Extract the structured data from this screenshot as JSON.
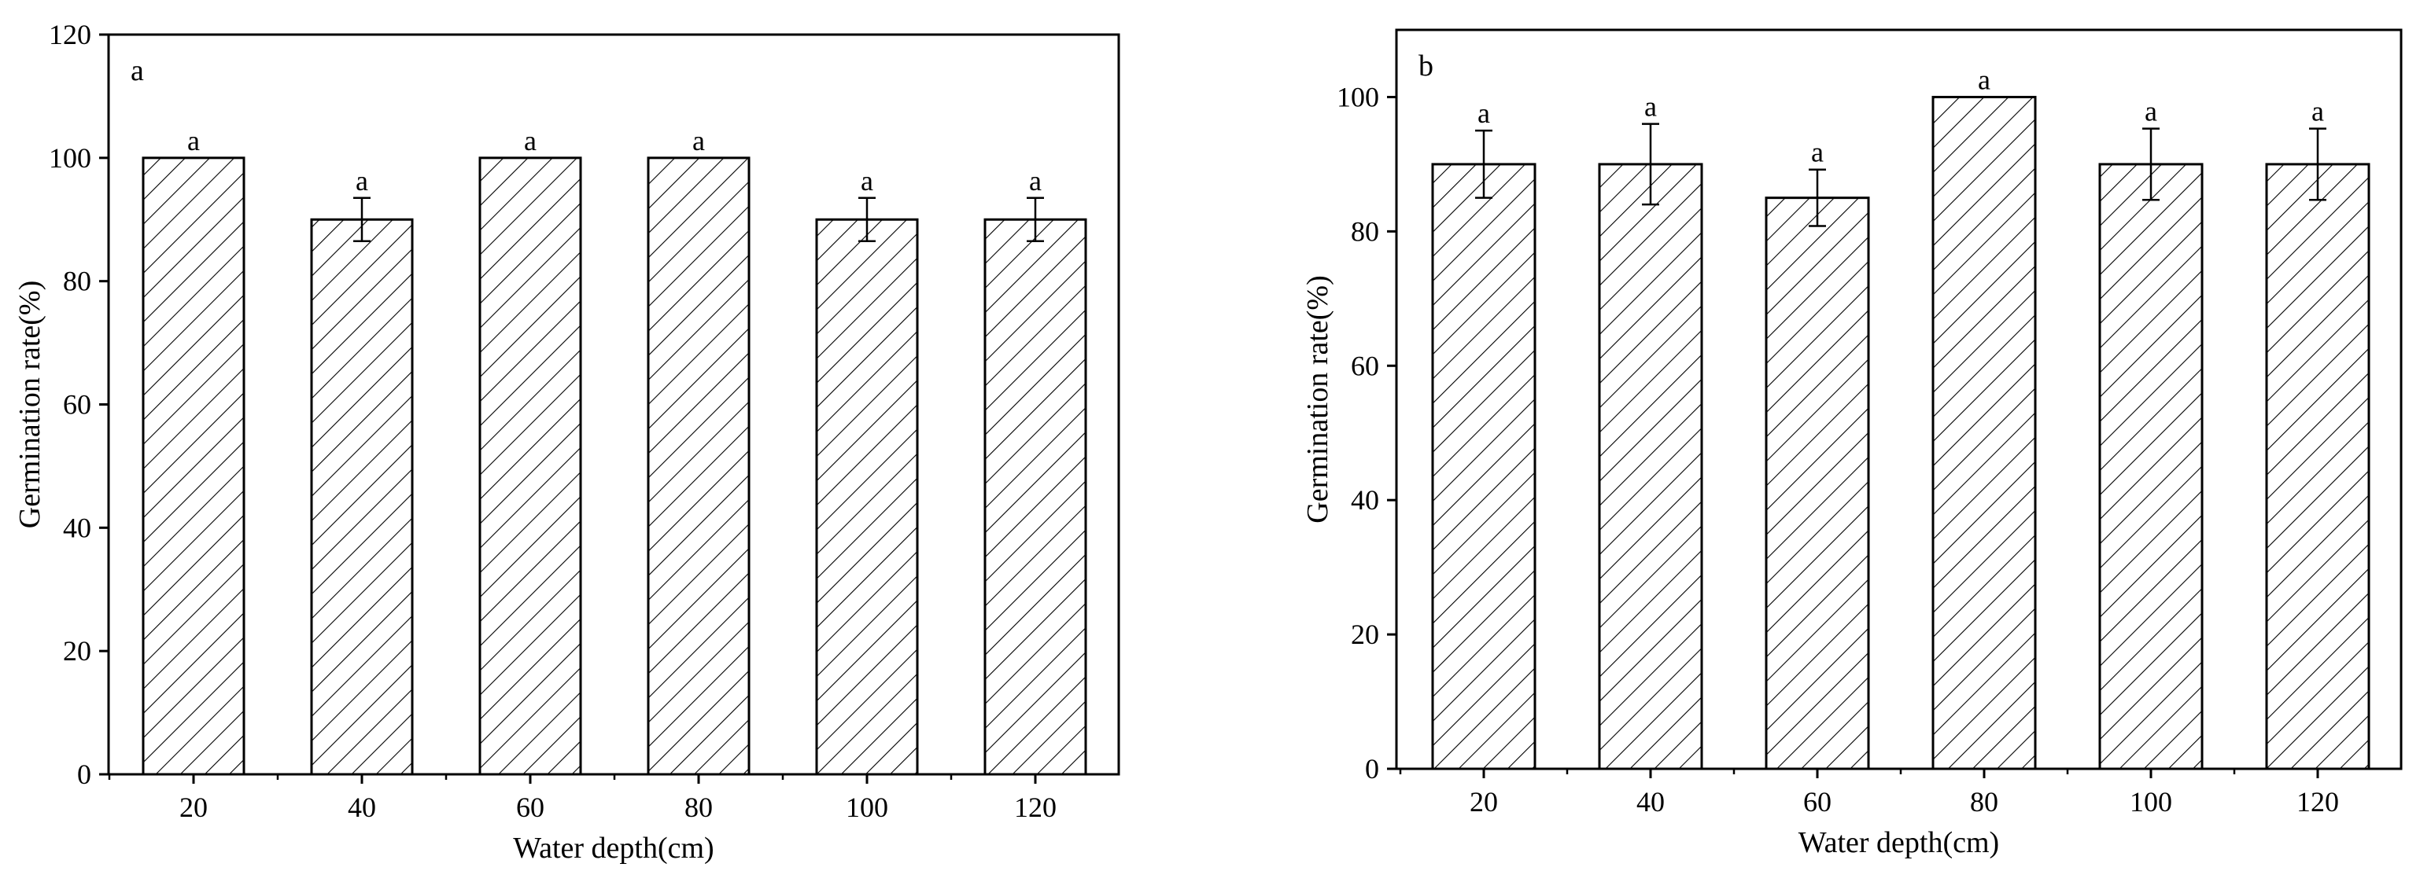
{
  "chart_data": [
    {
      "type": "bar",
      "panel_label": "a",
      "categories": [
        "20",
        "40",
        "60",
        "80",
        "100",
        "120"
      ],
      "series": [
        {
          "values": [
            100,
            90,
            100,
            100,
            90,
            90
          ],
          "errors": [
            0,
            3.5,
            0,
            0,
            3.5,
            3.5
          ],
          "significance": [
            "a",
            "a",
            "a",
            "a",
            "a",
            "a"
          ]
        }
      ],
      "xlabel": "Water depth(cm)",
      "ylabel": "Germination rate(%)",
      "ylim": [
        0,
        120
      ],
      "yticks": [
        0,
        20,
        40,
        60,
        80,
        100,
        120
      ],
      "bar_fill": "hatched",
      "grid": false
    },
    {
      "type": "bar",
      "panel_label": "b",
      "categories": [
        "20",
        "40",
        "60",
        "80",
        "100",
        "120"
      ],
      "series": [
        {
          "values": [
            90,
            90,
            85,
            100,
            90,
            90
          ],
          "errors": [
            5,
            6,
            4.2,
            0,
            5.3,
            5.3
          ],
          "significance": [
            "a",
            "a",
            "a",
            "a",
            "a",
            "a"
          ]
        }
      ],
      "xlabel": "Water depth(cm)",
      "ylabel": "Germination rate(%)",
      "ylim": [
        0,
        110
      ],
      "yticks": [
        0,
        20,
        40,
        60,
        80,
        100
      ],
      "bar_fill": "hatched",
      "grid": false
    }
  ]
}
